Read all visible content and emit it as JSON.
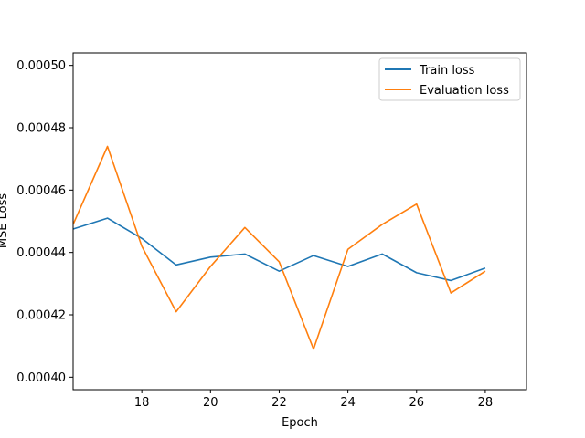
{
  "chart_data": {
    "type": "line",
    "title": "",
    "xlabel": "Epoch",
    "ylabel": "MSE Loss",
    "xlim": [
      16,
      29.2
    ],
    "ylim": [
      0.000396,
      0.000504
    ],
    "xticks": [
      18,
      20,
      22,
      24,
      26,
      28
    ],
    "xtick_labels": [
      "18",
      "20",
      "22",
      "24",
      "26",
      "28"
    ],
    "yticks": [
      0.0004,
      0.00042,
      0.00044,
      0.00046,
      0.00048,
      0.0005
    ],
    "ytick_labels": [
      "0.00040",
      "0.00042",
      "0.00044",
      "0.00046",
      "0.00048",
      "0.00050"
    ],
    "grid": false,
    "legend_position": "top-right",
    "x": [
      16,
      17,
      18,
      19,
      20,
      21,
      22,
      23,
      24,
      25,
      26,
      27,
      28
    ],
    "series": [
      {
        "name": "Train loss",
        "color": "#1f77b4",
        "values": [
          0.0004475,
          0.000451,
          0.0004445,
          0.000436,
          0.0004385,
          0.0004395,
          0.000434,
          0.000439,
          0.0004355,
          0.0004395,
          0.0004335,
          0.000431,
          0.000435
        ]
      },
      {
        "name": "Evaluation loss",
        "color": "#ff7f0e",
        "values": [
          0.000449,
          0.000474,
          0.000442,
          0.000421,
          0.0004355,
          0.000448,
          0.000437,
          0.000409,
          0.000441,
          0.000449,
          0.0004555,
          0.000427,
          0.000434
        ]
      }
    ]
  }
}
